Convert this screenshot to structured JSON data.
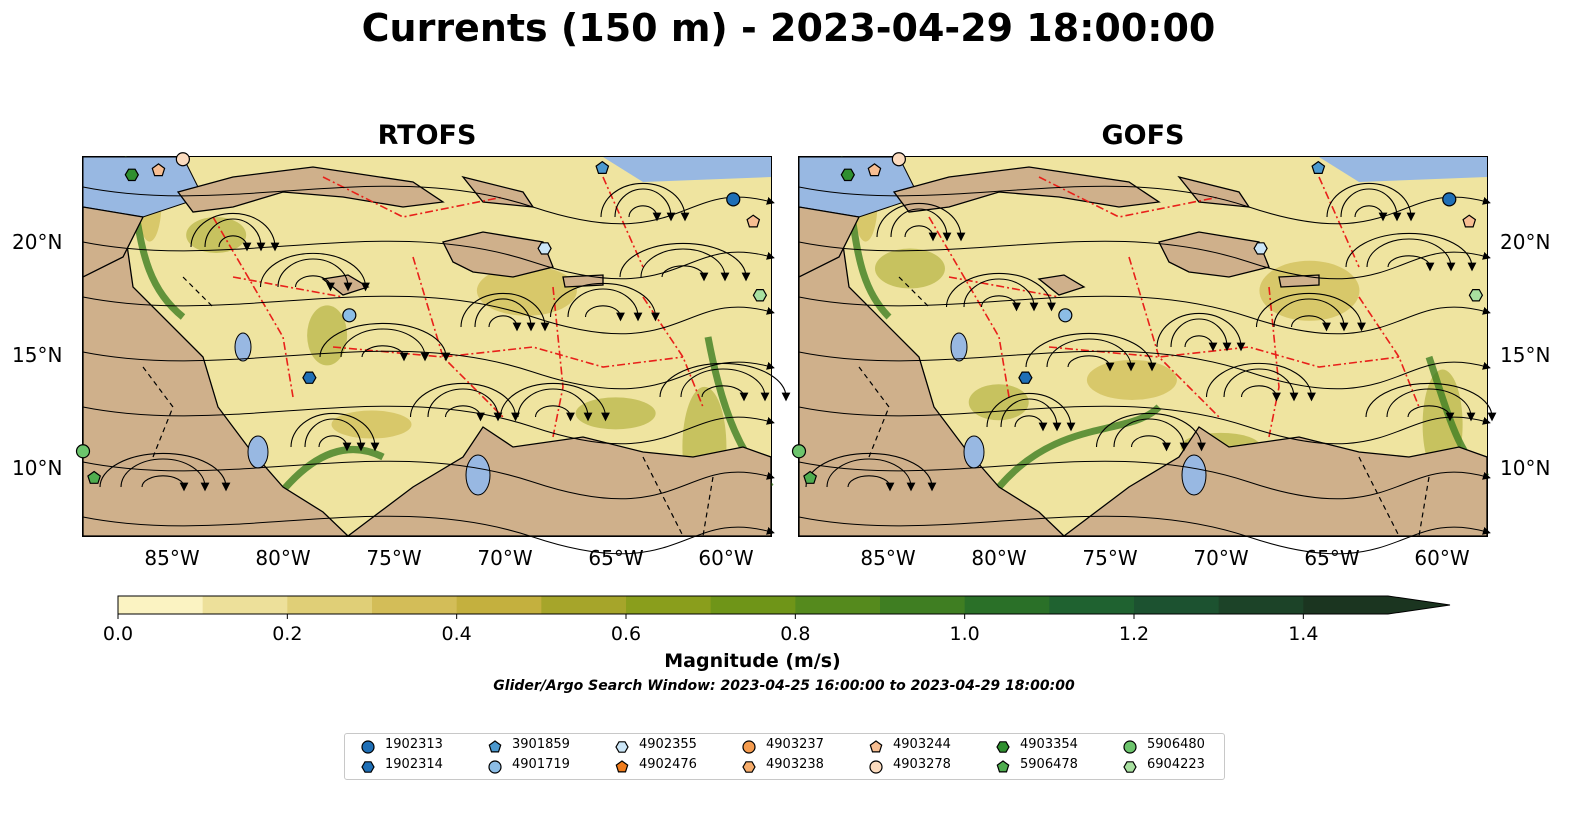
{
  "title": "Currents (150 m) - 2023-04-29 18:00:00",
  "panels": [
    {
      "name": "RTOFS"
    },
    {
      "name": "GOFS"
    }
  ],
  "map_extent": {
    "lon": [
      -89,
      -58
    ],
    "lat": [
      7,
      24
    ]
  },
  "latitude_ticks": [
    "20°N",
    "15°N",
    "10°N"
  ],
  "longitude_ticks": [
    "85°W",
    "80°W",
    "75°W",
    "70°W",
    "65°W",
    "60°W"
  ],
  "colorbar": {
    "label": "Magnitude (m/s)",
    "range": [
      0.0,
      1.5
    ],
    "extend": "max",
    "tick_labels": [
      "0.0",
      "0.2",
      "0.4",
      "0.6",
      "0.8",
      "1.0",
      "1.2",
      "1.4"
    ],
    "colors": [
      "#fbf3c2",
      "#ede09a",
      "#e0cf77",
      "#d3bd58",
      "#c4b03e",
      "#a6a52a",
      "#8a9e1c",
      "#6f9518",
      "#558a1d",
      "#3f7e22",
      "#2a7028",
      "#1f6230",
      "#1c5230",
      "#1c4328",
      "#1b3520"
    ],
    "extend_color": "#1b3520"
  },
  "subtitle": "Glider/Argo Search Window: 2023-04-25 16:00:00 to 2023-04-29 18:00:00",
  "colors": {
    "ocean": "#98b8e2",
    "land": "#cfb08b",
    "current_low": "#efe4a0",
    "eez": "#e8201a"
  },
  "legend": [
    {
      "id": "1902313",
      "marker": "circle",
      "color": "#1f6fb6"
    },
    {
      "id": "1902314",
      "marker": "hexagon",
      "color": "#1f6fb6"
    },
    {
      "id": "3901859",
      "marker": "pentagon",
      "color": "#4c99cf"
    },
    {
      "id": "4901719",
      "marker": "circle",
      "color": "#8cbde6"
    },
    {
      "id": "4902355",
      "marker": "hexagon",
      "color": "#cbe6f7"
    },
    {
      "id": "4902476",
      "marker": "pentagon",
      "color": "#f07c1c"
    },
    {
      "id": "4903237",
      "marker": "circle",
      "color": "#f59c4f"
    },
    {
      "id": "4903238",
      "marker": "hexagon",
      "color": "#f6ac6b"
    },
    {
      "id": "4903244",
      "marker": "pentagon",
      "color": "#f7be92"
    },
    {
      "id": "4903278",
      "marker": "circle",
      "color": "#fcdcbf"
    },
    {
      "id": "4903354",
      "marker": "hexagon",
      "color": "#2f8f2f"
    },
    {
      "id": "5906478",
      "marker": "pentagon",
      "color": "#4fad4f"
    },
    {
      "id": "5906480",
      "marker": "circle",
      "color": "#6cc46c"
    },
    {
      "id": "6904223",
      "marker": "hexagon",
      "color": "#a8e0a0"
    }
  ],
  "floats": [
    {
      "id": "4903354",
      "lon": -86.8,
      "lat": 23.2
    },
    {
      "id": "4903244",
      "lon": -85.6,
      "lat": 23.4
    },
    {
      "id": "4903278",
      "lon": -84.5,
      "lat": 23.9
    },
    {
      "id": "3901859",
      "lon": -65.6,
      "lat": 23.5
    },
    {
      "id": "1902313",
      "lon": -59.7,
      "lat": 22.1
    },
    {
      "id": "4903244",
      "lon": -58.8,
      "lat": 21.1
    },
    {
      "id": "4902355",
      "lon": -68.2,
      "lat": 19.9
    },
    {
      "id": "6904223",
      "lon": -58.5,
      "lat": 17.8
    },
    {
      "id": "4901719",
      "lon": -77.0,
      "lat": 16.9
    },
    {
      "id": "1902314",
      "lon": -78.8,
      "lat": 14.1
    },
    {
      "id": "5906480",
      "lon": -89.0,
      "lat": 10.8
    },
    {
      "id": "5906478",
      "lon": -88.5,
      "lat": 9.6
    }
  ]
}
